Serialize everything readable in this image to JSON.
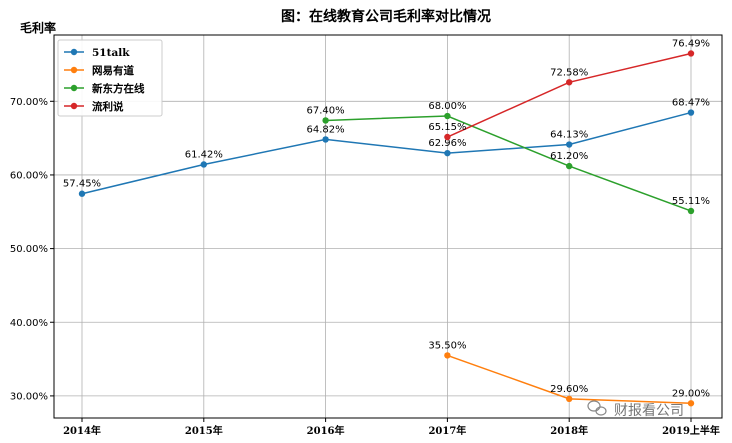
{
  "chart_data": {
    "type": "line",
    "title": "图：在线教育公司毛利率对比情况",
    "ylabel": "毛利率",
    "xlabel": "",
    "categories": [
      "2014年",
      "2015年",
      "2016年",
      "2017年",
      "2018年",
      "2019上半年"
    ],
    "ylim": [
      27,
      79
    ],
    "yticks": [
      30,
      40,
      50,
      60,
      70
    ],
    "ytick_labels": [
      "30.00%",
      "40.00%",
      "50.00%",
      "60.00%",
      "70.00%"
    ],
    "grid": true,
    "legend_position": "top-left",
    "series": [
      {
        "name": "51talk",
        "color": "#1f77b4",
        "values": [
          57.45,
          61.42,
          64.82,
          62.96,
          64.13,
          68.47
        ],
        "labels": [
          "57.45%",
          "61.42%",
          "64.82%",
          "62.96%",
          "64.13%",
          "68.47%"
        ]
      },
      {
        "name": "网易有道",
        "color": "#ff7f0e",
        "values": [
          null,
          null,
          null,
          35.5,
          29.6,
          29.0
        ],
        "labels": [
          null,
          null,
          null,
          "35.50%",
          "29.60%",
          "29.00%"
        ]
      },
      {
        "name": "新东方在线",
        "color": "#2ca02c",
        "values": [
          null,
          null,
          67.4,
          68.0,
          61.2,
          55.11
        ],
        "labels": [
          null,
          null,
          "67.40%",
          "68.00%",
          "61.20%",
          "55.11%"
        ]
      },
      {
        "name": "流利说",
        "color": "#d62728",
        "values": [
          null,
          null,
          null,
          65.15,
          72.58,
          76.49
        ],
        "labels": [
          null,
          null,
          null,
          "65.15%",
          "72.58%",
          "76.49%"
        ]
      }
    ]
  },
  "watermark": {
    "text": "财报看公司",
    "icon": "wechat-icon"
  }
}
